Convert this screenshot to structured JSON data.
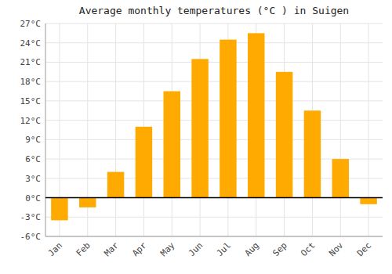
{
  "chart_data": {
    "type": "bar",
    "title": "Average monthly temperatures (°C ) in Suigen",
    "categories": [
      "Jan",
      "Feb",
      "Mar",
      "Apr",
      "May",
      "Jun",
      "Jul",
      "Aug",
      "Sep",
      "Oct",
      "Nov",
      "Dec"
    ],
    "values": [
      -3.5,
      -1.5,
      4.0,
      11.0,
      16.5,
      21.5,
      24.5,
      25.5,
      19.5,
      13.5,
      6.0,
      -1.0
    ],
    "color": "#FFAA00",
    "ylim": [
      -6,
      27
    ],
    "yticks": [
      {
        "value": -6,
        "label": "-6°C"
      },
      {
        "value": -3,
        "label": "-3°C"
      },
      {
        "value": 0,
        "label": "0°C"
      },
      {
        "value": 3,
        "label": "3°C"
      },
      {
        "value": 6,
        "label": "6°C"
      },
      {
        "value": 9,
        "label": "9°C"
      },
      {
        "value": 12,
        "label": "12°C"
      },
      {
        "value": 15,
        "label": "15°C"
      },
      {
        "value": 18,
        "label": "18°C"
      },
      {
        "value": 21,
        "label": "21°C"
      },
      {
        "value": 24,
        "label": "24°C"
      },
      {
        "value": 27,
        "label": "27°C"
      }
    ],
    "grid": true
  }
}
